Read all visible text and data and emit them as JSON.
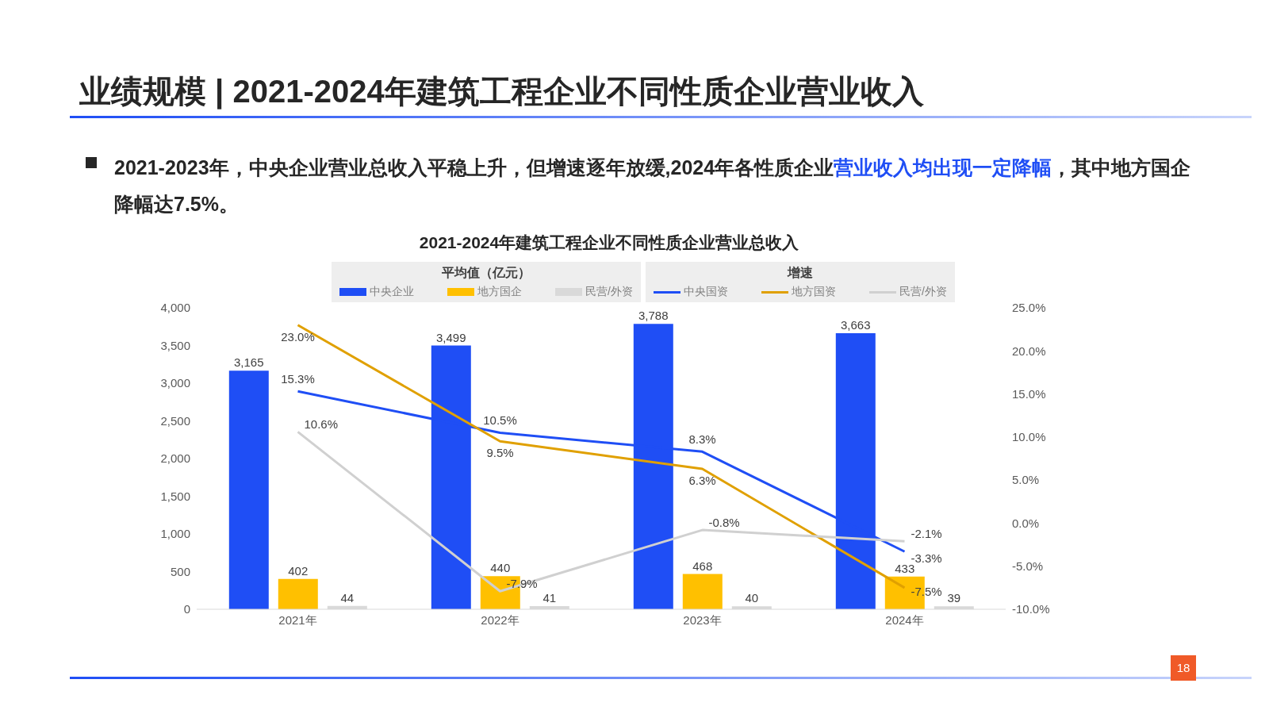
{
  "chart_data": {
    "type": "bar",
    "subtitle": "业绩规模 | 2021-2024年建筑工程企业不同性质企业营业收入",
    "title": "2021-2024年建筑工程企业不同性质企业营业总收入",
    "annotations": [
      "2021-2023年，中央企业营业总收入平稳上升，但增速逐年放缓,2024年各性质企业",
      "营业收入均出现一定降幅",
      "，其中地方国企降幅达7.5%。",
      "平均值（亿元）",
      "增速",
      "18"
    ],
    "categories": [
      "2021年",
      "2022年",
      "2023年",
      "2024年"
    ],
    "series": [
      {
        "name": "中央企业",
        "color": "#1f4ef5",
        "values": [
          3165,
          3499,
          3788,
          3663
        ],
        "value_labels": [
          "3,165",
          "3,499",
          "3,788",
          "3,663"
        ]
      },
      {
        "name": "地方国企",
        "color": "#ffc000",
        "values": [
          402,
          440,
          468,
          433
        ],
        "value_labels": [
          "402",
          "440",
          "468",
          "433"
        ]
      },
      {
        "name": "民营/外资",
        "color": "#d9d9d9",
        "values": [
          44,
          41,
          40,
          39
        ],
        "value_labels": [
          "44",
          "41",
          "40",
          "39"
        ]
      },
      {
        "name": "中央国资",
        "type": "line",
        "axis": "y2",
        "color": "#1f4ef5",
        "values": [
          15.3,
          10.5,
          8.3,
          -3.3
        ],
        "value_labels": [
          "15.3%",
          "10.5%",
          "8.3%",
          "-3.3%"
        ]
      },
      {
        "name": "地方国资",
        "type": "line",
        "axis": "y2",
        "color": "#e0a000",
        "values": [
          23.0,
          9.5,
          6.3,
          -7.5
        ],
        "value_labels": [
          "23.0%",
          "9.5%",
          "6.3%",
          "-7.5%"
        ]
      },
      {
        "name": "民营/外资",
        "type": "line",
        "axis": "y2",
        "color": "#d0d0d0",
        "values": [
          10.6,
          -7.9,
          -0.8,
          -2.1
        ],
        "value_labels": [
          "10.6%",
          "-7.9%",
          "-0.8%",
          "-2.1%"
        ]
      }
    ],
    "ylim": [
      0,
      4000
    ],
    "yticks": [
      0,
      {
        "value": 500,
        "label": "500"
      },
      {
        "value": 1000,
        "label": "1,000"
      },
      {
        "value": 1500,
        "label": "1,500"
      },
      {
        "value": 2000,
        "label": "2,000"
      },
      {
        "value": 2500,
        "label": "2,500"
      },
      {
        "value": 3000,
        "label": "3,000"
      },
      {
        "value": 3500,
        "label": "3,500"
      },
      {
        "value": 4000,
        "label": "4,000"
      }
    ],
    "y2lim": [
      -10,
      25
    ],
    "y2ticks": [
      {
        "value": -10,
        "label": "-10.0%"
      },
      {
        "value": -5,
        "label": "-5.0%"
      },
      {
        "value": 0,
        "label": "0.0%"
      },
      {
        "value": 5,
        "label": "5.0%"
      },
      {
        "value": 10,
        "label": "10.0%"
      },
      {
        "value": 15,
        "label": "15.0%"
      },
      {
        "value": 20,
        "label": "20.0%"
      },
      {
        "value": 25,
        "label": "25.0%"
      }
    ],
    "grid": false,
    "legend": "top",
    "marker": "none",
    "line_style": "solid"
  }
}
